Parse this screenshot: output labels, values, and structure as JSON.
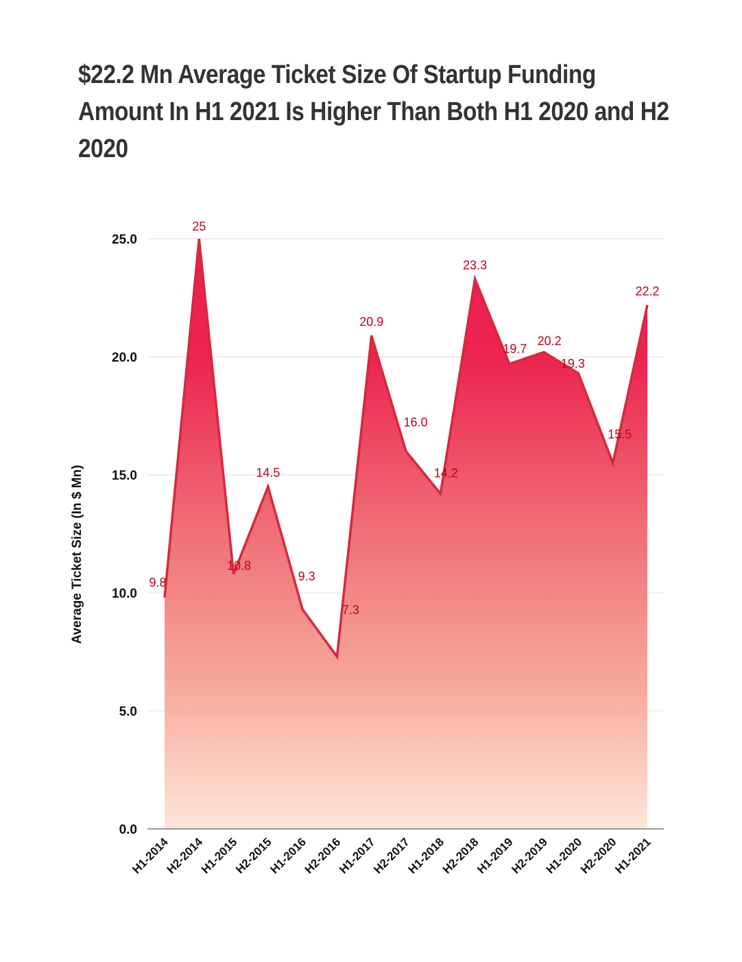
{
  "chart_data": {
    "type": "area",
    "title": "$22.2 Mn Average Ticket Size Of Startup Funding Amount In H1 2021 Is Higher Than Both H1 2020 and H2 2020",
    "xlabel": "",
    "ylabel": "Average Ticket Size (In $ Mn)",
    "ylim": [
      0,
      25
    ],
    "yticks": [
      "0.0",
      "5.0",
      "10.0",
      "15.0",
      "20.0",
      "25.0"
    ],
    "grid": true,
    "legend": "none",
    "categories": [
      "H1-2014",
      "H2-2014",
      "H1-2015",
      "H2-2015",
      "H1-2016",
      "H2-2016",
      "H1-2017",
      "H2-2017",
      "H1-2018",
      "H2-2018",
      "H1-2019",
      "H2-2019",
      "H1-2020",
      "H2-2020",
      "H1-2021"
    ],
    "series": [
      {
        "name": "Average Ticket Size",
        "values": [
          9.8,
          25,
          10.8,
          14.5,
          9.3,
          7.3,
          20.9,
          16.0,
          14.2,
          23.3,
          19.7,
          20.2,
          19.3,
          15.5,
          22.2
        ],
        "labels": [
          "9.8",
          "25",
          "10.8",
          "14.5",
          "9.3",
          "7.3",
          "20.9",
          "16.0",
          "14.2",
          "23.3",
          "19.7",
          "20.2",
          "19.3",
          "15.5",
          "22.2"
        ]
      }
    ],
    "colors": {
      "line": "#d42a3c",
      "fill_top": "#ec1f4f",
      "fill_bottom": "#fde6d8",
      "label": "#c0001a",
      "grid": "#dddddd",
      "axis": "#999999"
    }
  }
}
